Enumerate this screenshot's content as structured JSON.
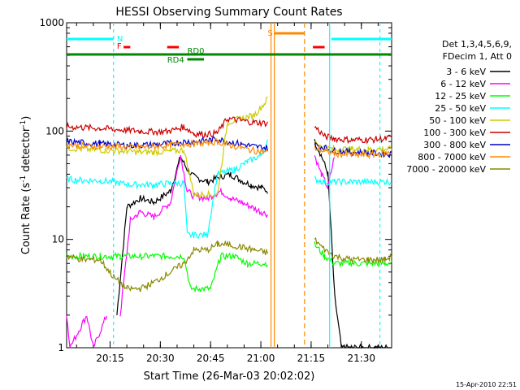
{
  "chart_data": {
    "type": "line",
    "title": "HESSI Observing Summary Count Rates",
    "xlabel": "Start Time (26-Mar-03 20:02:02)",
    "ylabel_main": "Count Rate (s",
    "ylabel_sup1": "-1",
    "ylabel_mid": " detector",
    "ylabel_sup2": "-1",
    "ylabel_end": ")",
    "ylim": [
      1,
      1000
    ],
    "yscale": "log",
    "xlim_minutes": [
      0,
      97
    ],
    "x_tick_labels": [
      "20:15",
      "20:30",
      "20:45",
      "21:00",
      "21:15",
      "21:30"
    ],
    "y_tick_labels": [
      "1",
      "10",
      "100",
      "1000"
    ],
    "legend_header": [
      "Det 1,3,4,5,6,9,",
      "FDecim 1, Att 0"
    ],
    "legend_placement": "right",
    "timestamp": "15-Apr-2010 22:51",
    "flags": [
      {
        "label": "N",
        "color": "#00ffff"
      },
      {
        "label": "F",
        "color": "#ff0000"
      },
      {
        "label": "RD0",
        "color": "#008800"
      },
      {
        "label": "RD4",
        "color": "#008800"
      },
      {
        "label": "S",
        "color": "#ff8800"
      }
    ],
    "series": [
      {
        "name": "3 - 6 keV",
        "color": "#000000",
        "x": [
          0,
          14,
          15,
          18,
          22,
          26,
          31,
          34,
          36,
          38,
          42,
          46,
          49,
          52,
          55,
          58,
          60,
          72,
          74,
          76,
          78,
          80,
          82,
          85,
          88,
          92,
          97
        ],
        "values": [
          null,
          null,
          2,
          20,
          24,
          22,
          28,
          58,
          44,
          38,
          34,
          38,
          40,
          35,
          32,
          30,
          28,
          null,
          80,
          60,
          40,
          3,
          1,
          1,
          1,
          1,
          1
        ]
      },
      {
        "name": "6 - 12 keV",
        "color": "#ff00ff",
        "x": [
          0,
          1,
          6,
          8,
          12,
          14,
          16,
          19,
          22,
          26,
          31,
          34,
          36,
          38,
          42,
          46,
          49,
          52,
          55,
          58,
          60,
          72,
          74,
          76,
          78,
          80
        ],
        "values": [
          2,
          1,
          2,
          1,
          2,
          null,
          2,
          15,
          18,
          16,
          22,
          60,
          28,
          25,
          24,
          28,
          24,
          22,
          20,
          18,
          17,
          null,
          60,
          40,
          30,
          60
        ]
      },
      {
        "name": "12 - 25 keV",
        "color": "#00ff00",
        "x": [
          0,
          5,
          10,
          14,
          16,
          22,
          26,
          31,
          35,
          37,
          40,
          43,
          46,
          50,
          54,
          58,
          60,
          72,
          74,
          77,
          80,
          85,
          90,
          95,
          97
        ],
        "values": [
          7,
          7,
          7,
          7,
          7,
          7,
          7,
          7,
          7,
          3.5,
          3.5,
          3.5,
          7,
          7,
          6,
          6,
          6,
          null,
          9,
          7,
          6,
          6,
          6,
          6,
          6
        ]
      },
      {
        "name": "25 - 50 keV",
        "color": "#00ffff",
        "x": [
          0,
          5,
          10,
          14,
          18,
          22,
          26,
          31,
          35,
          36,
          38,
          42,
          45,
          50,
          54,
          58,
          60,
          72,
          74,
          77,
          80,
          85,
          90,
          95,
          97
        ],
        "values": [
          36,
          35,
          35,
          34,
          32,
          32,
          32,
          33,
          33,
          11,
          11,
          11,
          40,
          44,
          52,
          60,
          80,
          null,
          36,
          34,
          34,
          34,
          34,
          34,
          34
        ]
      },
      {
        "name": "50 - 100 keV",
        "color": "#cccc00",
        "x": [
          0,
          5,
          10,
          14,
          18,
          22,
          26,
          31,
          35,
          38,
          42,
          45,
          48,
          52,
          56,
          59,
          60,
          72,
          74,
          77,
          80,
          85,
          90,
          95,
          97
        ],
        "values": [
          70,
          68,
          67,
          66,
          65,
          64,
          64,
          65,
          67,
          26,
          26,
          26,
          120,
          130,
          140,
          180,
          200,
          null,
          80,
          70,
          68,
          68,
          68,
          68,
          68
        ]
      },
      {
        "name": "100 - 300 keV",
        "color": "#cc0000",
        "x": [
          0,
          5,
          10,
          14,
          18,
          22,
          26,
          31,
          35,
          38,
          42,
          45,
          48,
          52,
          56,
          60,
          72,
          74,
          77,
          80,
          85,
          90,
          95,
          97
        ],
        "values": [
          110,
          108,
          106,
          104,
          102,
          100,
          98,
          100,
          110,
          95,
          93,
          96,
          130,
          125,
          120,
          118,
          null,
          110,
          90,
          85,
          83,
          83,
          85,
          88
        ]
      },
      {
        "name": "300 - 800 keV",
        "color": "#0000cc",
        "x": [
          0,
          5,
          10,
          14,
          18,
          22,
          26,
          31,
          35,
          38,
          42,
          45,
          48,
          52,
          56,
          60,
          72,
          74,
          77,
          80,
          85,
          90,
          95,
          97
        ],
        "values": [
          80,
          78,
          76,
          75,
          74,
          74,
          75,
          77,
          80,
          80,
          82,
          84,
          80,
          76,
          72,
          70,
          null,
          75,
          70,
          66,
          64,
          63,
          62,
          61
        ]
      },
      {
        "name": "800 - 7000 keV",
        "color": "#ff8800",
        "x": [
          0,
          5,
          10,
          14,
          18,
          22,
          26,
          31,
          35,
          38,
          42,
          45,
          48,
          52,
          56,
          60,
          72,
          74,
          77,
          80,
          85,
          90,
          95,
          97
        ],
        "values": [
          75,
          73,
          72,
          72,
          71,
          71,
          72,
          74,
          76,
          76,
          78,
          80,
          75,
          70,
          66,
          64,
          null,
          70,
          65,
          62,
          60,
          60,
          62,
          64
        ]
      },
      {
        "name": "7000 - 20000 keV",
        "color": "#888800",
        "x": [
          0,
          5,
          10,
          14,
          18,
          22,
          26,
          31,
          35,
          38,
          42,
          45,
          48,
          52,
          56,
          60,
          72,
          74,
          77,
          80,
          85,
          90,
          95,
          97
        ],
        "values": [
          7,
          6.5,
          6.5,
          4.5,
          3.5,
          3.5,
          4,
          5,
          6,
          8,
          8,
          9,
          9,
          8.5,
          8,
          7.5,
          null,
          10,
          8,
          7,
          6.5,
          6.5,
          6.5,
          7
        ]
      }
    ]
  }
}
